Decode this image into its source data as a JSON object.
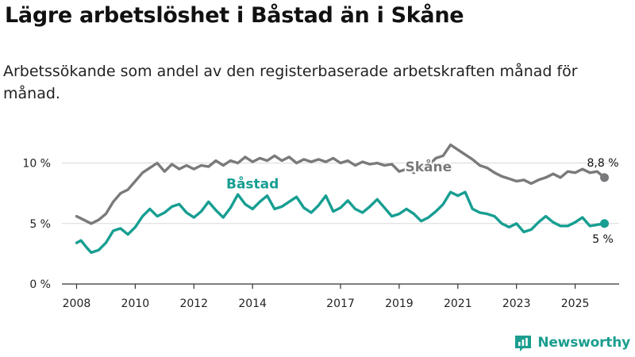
{
  "title": "Lägre arbetslöshet i Båstad än i Skåne",
  "subtitle": "Arbetssökande som andel av den registerbaserade arbetskraften månad för månad.",
  "brand": {
    "name": "Newsworthy",
    "icon": "newsworthy-bar-chart-icon"
  },
  "colors": {
    "skane": "#7a7a7c",
    "bastad": "#179e92",
    "grid": "#d9d9d9",
    "axis": "#333333"
  },
  "chart_data": {
    "type": "line",
    "title": "Lägre arbetslöshet i Båstad än i Skåne",
    "xlabel": "",
    "ylabel": "",
    "xlim": [
      2007.5,
      2026.5
    ],
    "ylim": [
      0,
      12
    ],
    "grid": true,
    "x_ticks": [
      {
        "value": 2008,
        "label": "2008"
      },
      {
        "value": 2010,
        "label": "2010"
      },
      {
        "value": 2012,
        "label": "2012"
      },
      {
        "value": 2014,
        "label": "2014"
      },
      {
        "value": 2017,
        "label": "2017"
      },
      {
        "value": 2019,
        "label": "2019"
      },
      {
        "value": 2021,
        "label": "2021"
      },
      {
        "value": 2023,
        "label": "2023"
      },
      {
        "value": 2025,
        "label": "2025"
      }
    ],
    "y_ticks": [
      {
        "value": 0,
        "label": "0 %"
      },
      {
        "value": 5,
        "label": "5 %"
      },
      {
        "value": 10,
        "label": "10 %"
      }
    ],
    "series": [
      {
        "name": "Skåne",
        "key": "skane",
        "end_label": "8,8 %",
        "points": [
          [
            2008.0,
            5.6
          ],
          [
            2008.25,
            5.3
          ],
          [
            2008.5,
            5.0
          ],
          [
            2008.75,
            5.3
          ],
          [
            2009.0,
            5.8
          ],
          [
            2009.25,
            6.8
          ],
          [
            2009.5,
            7.5
          ],
          [
            2009.75,
            7.8
          ],
          [
            2010.0,
            8.5
          ],
          [
            2010.25,
            9.2
          ],
          [
            2010.5,
            9.6
          ],
          [
            2010.75,
            10.0
          ],
          [
            2011.0,
            9.3
          ],
          [
            2011.25,
            9.9
          ],
          [
            2011.5,
            9.5
          ],
          [
            2011.75,
            9.8
          ],
          [
            2012.0,
            9.5
          ],
          [
            2012.25,
            9.8
          ],
          [
            2012.5,
            9.7
          ],
          [
            2012.75,
            10.2
          ],
          [
            2013.0,
            9.8
          ],
          [
            2013.25,
            10.2
          ],
          [
            2013.5,
            10.0
          ],
          [
            2013.75,
            10.5
          ],
          [
            2014.0,
            10.1
          ],
          [
            2014.25,
            10.4
          ],
          [
            2014.5,
            10.2
          ],
          [
            2014.75,
            10.6
          ],
          [
            2015.0,
            10.2
          ],
          [
            2015.25,
            10.5
          ],
          [
            2015.5,
            10.0
          ],
          [
            2015.75,
            10.3
          ],
          [
            2016.0,
            10.1
          ],
          [
            2016.25,
            10.3
          ],
          [
            2016.5,
            10.1
          ],
          [
            2016.75,
            10.4
          ],
          [
            2017.0,
            10.0
          ],
          [
            2017.25,
            10.2
          ],
          [
            2017.5,
            9.8
          ],
          [
            2017.75,
            10.1
          ],
          [
            2018.0,
            9.9
          ],
          [
            2018.25,
            10.0
          ],
          [
            2018.5,
            9.8
          ],
          [
            2018.75,
            9.9
          ],
          [
            2019.0,
            9.3
          ],
          [
            2019.25,
            9.5
          ],
          [
            2019.5,
            9.2
          ],
          [
            2019.75,
            9.6
          ],
          [
            2020.0,
            9.8
          ],
          [
            2020.25,
            10.4
          ],
          [
            2020.5,
            10.6
          ],
          [
            2020.75,
            11.5
          ],
          [
            2021.0,
            11.1
          ],
          [
            2021.25,
            10.7
          ],
          [
            2021.5,
            10.3
          ],
          [
            2021.75,
            9.8
          ],
          [
            2022.0,
            9.6
          ],
          [
            2022.25,
            9.2
          ],
          [
            2022.5,
            8.9
          ],
          [
            2022.75,
            8.7
          ],
          [
            2023.0,
            8.5
          ],
          [
            2023.25,
            8.6
          ],
          [
            2023.5,
            8.3
          ],
          [
            2023.75,
            8.6
          ],
          [
            2024.0,
            8.8
          ],
          [
            2024.25,
            9.1
          ],
          [
            2024.5,
            8.8
          ],
          [
            2024.75,
            9.3
          ],
          [
            2025.0,
            9.2
          ],
          [
            2025.25,
            9.5
          ],
          [
            2025.5,
            9.2
          ],
          [
            2025.75,
            9.3
          ],
          [
            2026.0,
            8.8
          ]
        ]
      },
      {
        "name": "Båstad",
        "key": "bastad",
        "end_label": "5 %",
        "points": [
          [
            2008.0,
            3.4
          ],
          [
            2008.15,
            3.6
          ],
          [
            2008.35,
            3.0
          ],
          [
            2008.5,
            2.6
          ],
          [
            2008.75,
            2.8
          ],
          [
            2009.0,
            3.4
          ],
          [
            2009.25,
            4.4
          ],
          [
            2009.5,
            4.6
          ],
          [
            2009.75,
            4.1
          ],
          [
            2010.0,
            4.7
          ],
          [
            2010.25,
            5.6
          ],
          [
            2010.5,
            6.2
          ],
          [
            2010.75,
            5.6
          ],
          [
            2011.0,
            5.9
          ],
          [
            2011.25,
            6.4
          ],
          [
            2011.5,
            6.6
          ],
          [
            2011.75,
            5.9
          ],
          [
            2012.0,
            5.5
          ],
          [
            2012.25,
            6.0
          ],
          [
            2012.5,
            6.8
          ],
          [
            2012.75,
            6.1
          ],
          [
            2013.0,
            5.5
          ],
          [
            2013.25,
            6.3
          ],
          [
            2013.5,
            7.4
          ],
          [
            2013.75,
            6.6
          ],
          [
            2014.0,
            6.2
          ],
          [
            2014.25,
            6.8
          ],
          [
            2014.5,
            7.3
          ],
          [
            2014.75,
            6.2
          ],
          [
            2015.0,
            6.4
          ],
          [
            2015.25,
            6.8
          ],
          [
            2015.5,
            7.2
          ],
          [
            2015.75,
            6.3
          ],
          [
            2016.0,
            5.9
          ],
          [
            2016.25,
            6.5
          ],
          [
            2016.5,
            7.3
          ],
          [
            2016.75,
            6.0
          ],
          [
            2017.0,
            6.3
          ],
          [
            2017.25,
            6.9
          ],
          [
            2017.5,
            6.2
          ],
          [
            2017.75,
            5.9
          ],
          [
            2018.0,
            6.4
          ],
          [
            2018.25,
            7.0
          ],
          [
            2018.5,
            6.3
          ],
          [
            2018.75,
            5.6
          ],
          [
            2019.0,
            5.8
          ],
          [
            2019.25,
            6.2
          ],
          [
            2019.5,
            5.8
          ],
          [
            2019.75,
            5.2
          ],
          [
            2020.0,
            5.5
          ],
          [
            2020.25,
            6.0
          ],
          [
            2020.5,
            6.6
          ],
          [
            2020.75,
            7.6
          ],
          [
            2021.0,
            7.3
          ],
          [
            2021.25,
            7.6
          ],
          [
            2021.5,
            6.2
          ],
          [
            2021.75,
            5.9
          ],
          [
            2022.0,
            5.8
          ],
          [
            2022.25,
            5.6
          ],
          [
            2022.5,
            5.0
          ],
          [
            2022.75,
            4.7
          ],
          [
            2023.0,
            5.0
          ],
          [
            2023.25,
            4.3
          ],
          [
            2023.5,
            4.5
          ],
          [
            2023.75,
            5.1
          ],
          [
            2024.0,
            5.6
          ],
          [
            2024.25,
            5.1
          ],
          [
            2024.5,
            4.8
          ],
          [
            2024.75,
            4.8
          ],
          [
            2025.0,
            5.1
          ],
          [
            2025.25,
            5.5
          ],
          [
            2025.5,
            4.8
          ],
          [
            2025.75,
            4.9
          ],
          [
            2026.0,
            5.0
          ]
        ]
      }
    ]
  }
}
